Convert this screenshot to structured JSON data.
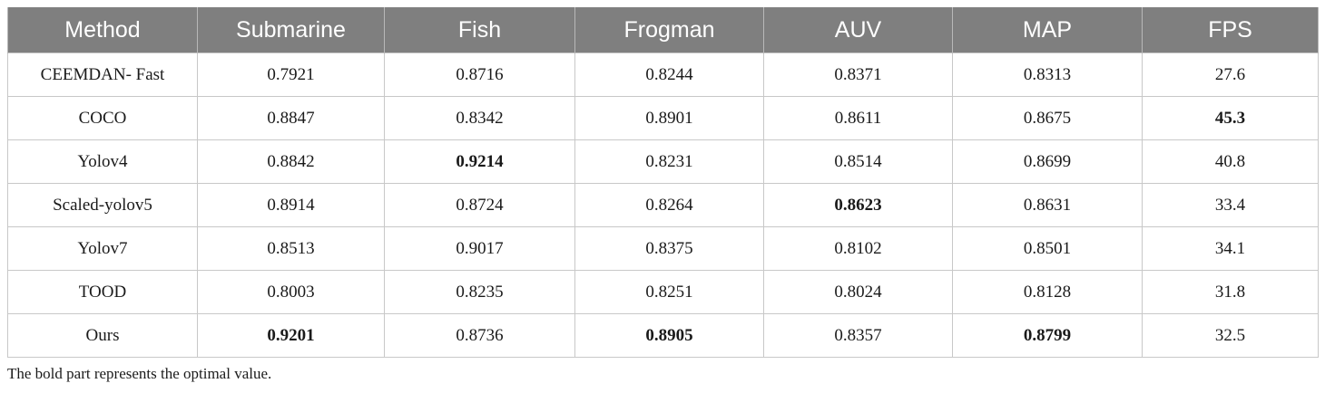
{
  "table": {
    "headers": [
      "Method",
      "Submarine",
      "Fish",
      "Frogman",
      "AUV",
      "MAP",
      "FPS"
    ],
    "rows": [
      {
        "cells": [
          "CEEMDAN- Fast",
          "0.7921",
          "0.8716",
          "0.8244",
          "0.8371",
          "0.8313",
          "27.6"
        ],
        "bold": []
      },
      {
        "cells": [
          "COCO",
          "0.8847",
          "0.8342",
          "0.8901",
          "0.8611",
          "0.8675",
          "45.3"
        ],
        "bold": [
          6
        ]
      },
      {
        "cells": [
          "Yolov4",
          "0.8842",
          "0.9214",
          "0.8231",
          "0.8514",
          "0.8699",
          "40.8"
        ],
        "bold": [
          2
        ]
      },
      {
        "cells": [
          "Scaled-yolov5",
          "0.8914",
          "0.8724",
          "0.8264",
          "0.8623",
          "0.8631",
          "33.4"
        ],
        "bold": [
          4
        ]
      },
      {
        "cells": [
          "Yolov7",
          "0.8513",
          "0.9017",
          "0.8375",
          "0.8102",
          "0.8501",
          "34.1"
        ],
        "bold": []
      },
      {
        "cells": [
          "TOOD",
          "0.8003",
          "0.8235",
          "0.8251",
          "0.8024",
          "0.8128",
          "31.8"
        ],
        "bold": []
      },
      {
        "cells": [
          "Ours",
          "0.9201",
          "0.8736",
          "0.8905",
          "0.8357",
          "0.8799",
          "32.5"
        ],
        "bold": [
          1,
          3,
          5
        ]
      }
    ]
  },
  "footnote": "The bold part represents the optimal value."
}
